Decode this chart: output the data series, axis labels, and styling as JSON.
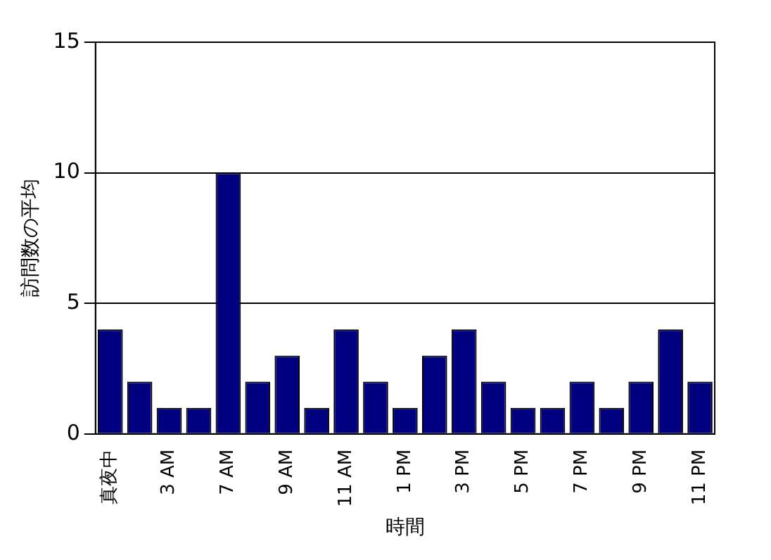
{
  "chart_data": {
    "type": "bar",
    "xlabel": "時間",
    "ylabel": "訪問数の平均",
    "categories": [
      "真夜中",
      null,
      "3 AM",
      null,
      "7 AM",
      null,
      "9 AM",
      null,
      "11 AM",
      null,
      "1 PM",
      null,
      "3 PM",
      null,
      "5 PM",
      null,
      "7 PM",
      null,
      "9 PM",
      null,
      "11 PM"
    ],
    "values": [
      4,
      2,
      1,
      1,
      10,
      2,
      3,
      1,
      4,
      2,
      1,
      3,
      4,
      2,
      1,
      1,
      2,
      1,
      2,
      4,
      2
    ],
    "color": "#000080",
    "ylim": [
      0,
      15
    ],
    "yticks": [
      0,
      5,
      10,
      15
    ],
    "grid": "y"
  }
}
